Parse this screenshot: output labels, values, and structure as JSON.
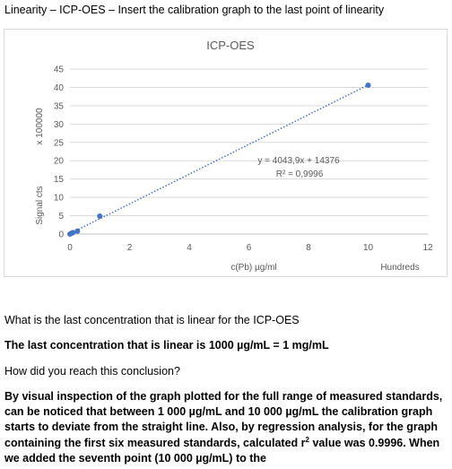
{
  "document": {
    "heading": "Linearity – ICP-OES – Insert the calibration graph to the last point of linearity",
    "question_1": "What is the last concentration that is linear for the ICP-OES",
    "answer_1": "The last concentration that is linear is 1000 µg/mL = 1 mg/mL",
    "question_2": "How did you reach this conclusion?",
    "answer_2_part_a": "By visual inspection of the graph plotted for the full range of measured standards, can be noticed that between 1 000 µg/mL and 10 000 µg/mL the calibration graph starts to deviate from the straight line. Also, by regression analysis, for the graph containing the first six measured standards, calculated r",
    "answer_2_sup": "2",
    "answer_2_part_b": " value was 0.9996. When we added the seventh point (10 000 µg/mL) to the"
  },
  "chart_data": {
    "type": "scatter",
    "title": "ICP-OES",
    "xlabel": "c(Pb) µg/ml",
    "x_unit_label": "Hundreds",
    "ylabel": "Signal cts",
    "y_unit_label": "x 100000",
    "xlim": [
      0,
      12
    ],
    "ylim": [
      0,
      45
    ],
    "x_ticks": [
      0,
      2,
      4,
      6,
      8,
      10,
      12
    ],
    "y_ticks": [
      0,
      5,
      10,
      15,
      20,
      25,
      30,
      35,
      40,
      45
    ],
    "grid": "horizontal",
    "points": [
      {
        "x": 0.0,
        "y": 0.0
      },
      {
        "x": 0.05,
        "y": 0.2
      },
      {
        "x": 0.1,
        "y": 0.4
      },
      {
        "x": 0.25,
        "y": 0.8
      },
      {
        "x": 1.0,
        "y": 4.9
      },
      {
        "x": 10.0,
        "y": 40.6
      }
    ],
    "marker_color": "#4472c4",
    "trendline": {
      "type": "linear",
      "style": "dotted",
      "color": "#4472c4",
      "x_range": [
        0,
        10
      ],
      "equation": "y = 4043,9x + 14376",
      "r_squared": "R² = 0,9996"
    }
  }
}
